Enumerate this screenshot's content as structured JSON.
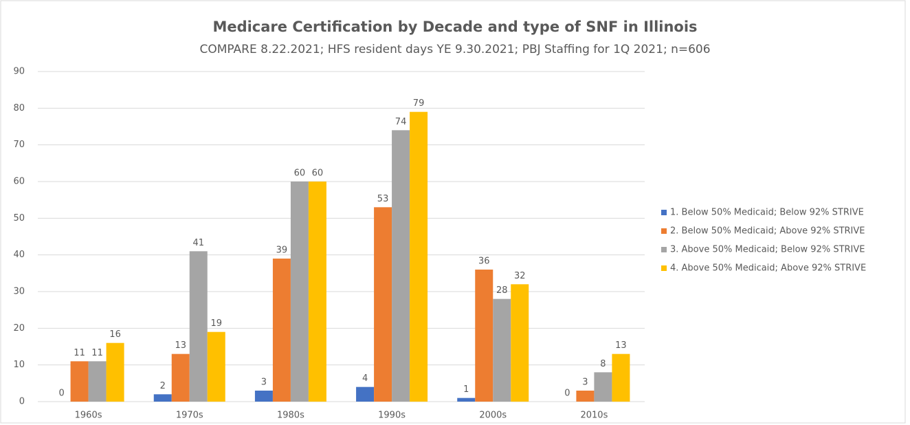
{
  "chart_data": {
    "type": "bar",
    "title": "Medicare Certification by Decade and type of SNF in Illinois",
    "subtitle": "COMPARE 8.22.2021; HFS resident days YE 9.30.2021; PBJ Staffing for 1Q 2021; n=606",
    "categories": [
      "1960s",
      "1970s",
      "1980s",
      "1990s",
      "2000s",
      "2010s"
    ],
    "series": [
      {
        "name": "1. Below 50% Medicaid; Below 92% STRIVE",
        "color": "#4472c4",
        "values": [
          0,
          2,
          3,
          4,
          1,
          0
        ]
      },
      {
        "name": "2. Below 50% Medicaid; Above 92% STRIVE",
        "color": "#ed7d31",
        "values": [
          11,
          13,
          39,
          53,
          36,
          3
        ]
      },
      {
        "name": "3. Above 50% Medicaid; Below 92% STRIVE",
        "color": "#a5a5a5",
        "values": [
          11,
          41,
          60,
          74,
          28,
          8
        ]
      },
      {
        "name": "4. Above 50% Medicaid; Above 92% STRIVE",
        "color": "#ffc000",
        "values": [
          16,
          19,
          60,
          79,
          32,
          13
        ]
      }
    ],
    "ylim": [
      0,
      90
    ],
    "yticks": [
      0,
      10,
      20,
      30,
      40,
      50,
      60,
      70,
      80,
      90
    ],
    "grid": true,
    "legend": "right"
  }
}
